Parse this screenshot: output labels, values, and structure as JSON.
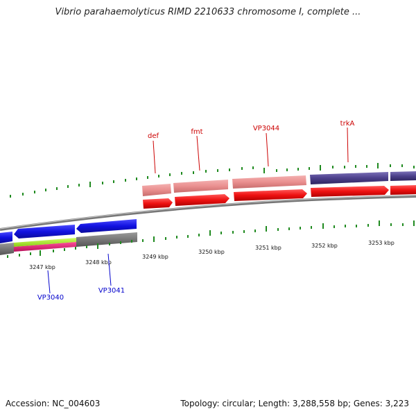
{
  "title": "Vibrio parahaemolyticus RIMD 2210633 chromosome I, complete ...",
  "accession_text": "Accession: NC_004603",
  "summary_text": "Topology: circular; Length: 3,288,558 bp; Genes: 3,223",
  "ruler": {
    "tick_labels": [
      "3247 kbp",
      "3248 kbp",
      "3249 kbp",
      "3250 kbp",
      "3251 kbp",
      "3252 kbp",
      "3253 kbp"
    ]
  },
  "genes_top": [
    "def",
    "fmt",
    "VP3044",
    "trkA"
  ],
  "genes_bottom": [
    "VP3040",
    "VP3041"
  ],
  "colors": {
    "forward_gene": "#ee1111",
    "forward_gene_light": "#ea8f8f",
    "reverse_gene": "#1111e0",
    "operon": "#4b3f8a",
    "backbone": "#888888",
    "tick": "#1f8a1f",
    "label_top": "#cc0000",
    "label_bottom": "#0000cc",
    "highlight_green": "#a8ee22",
    "highlight_pink": "#e8207a"
  }
}
